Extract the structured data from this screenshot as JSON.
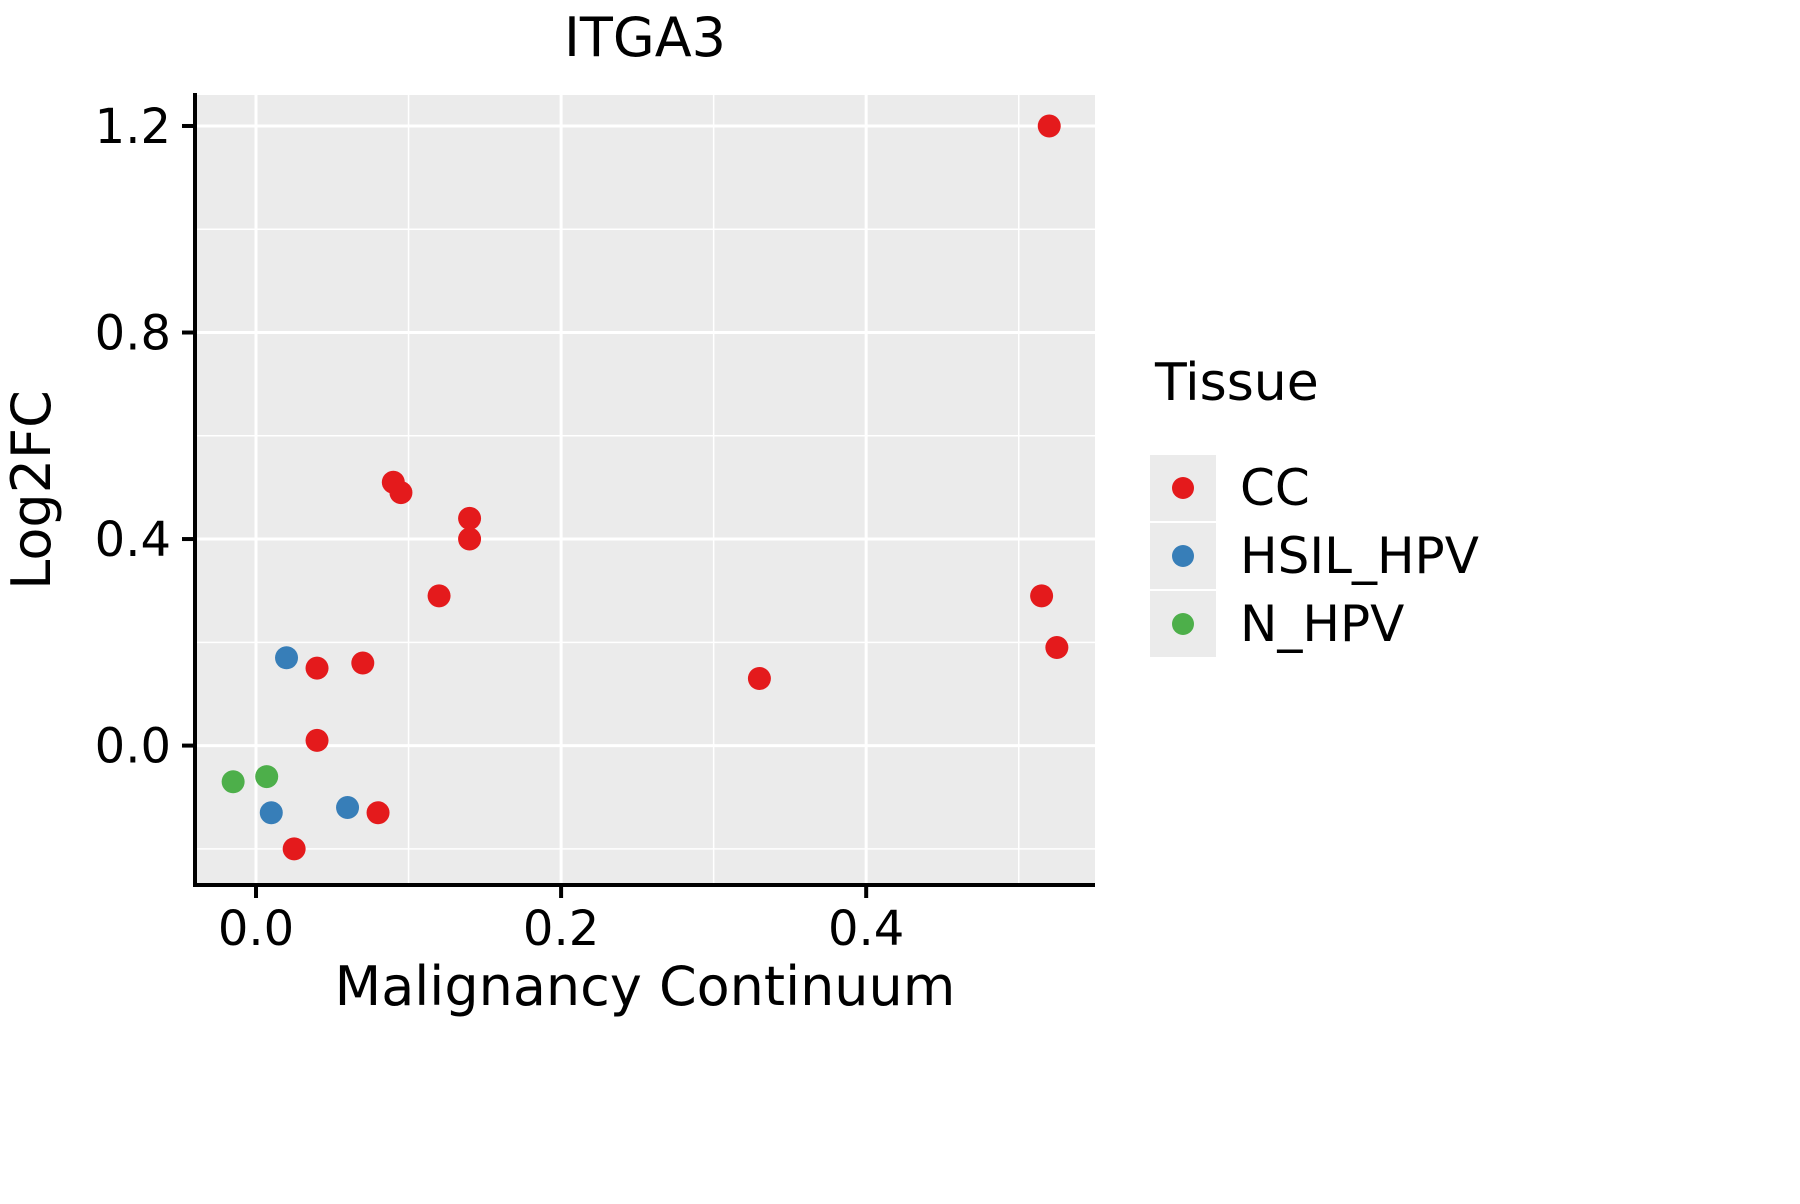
{
  "chart_data": {
    "type": "scatter",
    "title": "ITGA3",
    "xlabel": "Malignancy Continuum",
    "ylabel": "Log2FC",
    "xlim": [
      -0.04,
      0.55
    ],
    "ylim": [
      -0.27,
      1.26
    ],
    "grid": true,
    "panel_bg": "#ebebeb",
    "grid_color": "#ffffff",
    "axis_color": "#000000",
    "point_radius_px": 11.5,
    "x_ticks": {
      "major": [
        {
          "value": 0.0,
          "label": "0.0"
        },
        {
          "value": 0.2,
          "label": "0.2"
        },
        {
          "value": 0.4,
          "label": "0.4"
        }
      ],
      "minor": [
        0.1,
        0.3,
        0.5
      ]
    },
    "y_ticks": {
      "major": [
        {
          "value": 0.0,
          "label": "0.0"
        },
        {
          "value": 0.4,
          "label": "0.4"
        },
        {
          "value": 0.8,
          "label": "0.8"
        },
        {
          "value": 1.2,
          "label": "1.2"
        }
      ],
      "minor": [
        -0.2,
        0.2,
        0.6,
        1.0
      ]
    },
    "legend": {
      "title": "Tissue",
      "position": "right",
      "entries": [
        {
          "label": "CC",
          "color": "#e41a1c"
        },
        {
          "label": "HSIL_HPV",
          "color": "#377eb8"
        },
        {
          "label": "N_HPV",
          "color": "#4daf4a"
        }
      ]
    },
    "series": [
      {
        "name": "CC",
        "color": "#e41a1c",
        "points": [
          [
            0.52,
            1.2
          ],
          [
            0.09,
            0.51
          ],
          [
            0.095,
            0.49
          ],
          [
            0.14,
            0.44
          ],
          [
            0.14,
            0.4
          ],
          [
            0.12,
            0.29
          ],
          [
            0.515,
            0.29
          ],
          [
            0.525,
            0.19
          ],
          [
            0.33,
            0.13
          ],
          [
            0.07,
            0.16
          ],
          [
            0.04,
            0.15
          ],
          [
            0.04,
            0.01
          ],
          [
            0.08,
            -0.13
          ],
          [
            0.025,
            -0.2
          ]
        ]
      },
      {
        "name": "HSIL_HPV",
        "color": "#377eb8",
        "points": [
          [
            0.02,
            0.17
          ],
          [
            0.01,
            -0.13
          ],
          [
            0.06,
            -0.12
          ]
        ]
      },
      {
        "name": "N_HPV",
        "color": "#4daf4a",
        "points": [
          [
            -0.015,
            -0.07
          ],
          [
            0.007,
            -0.06
          ]
        ]
      }
    ]
  }
}
